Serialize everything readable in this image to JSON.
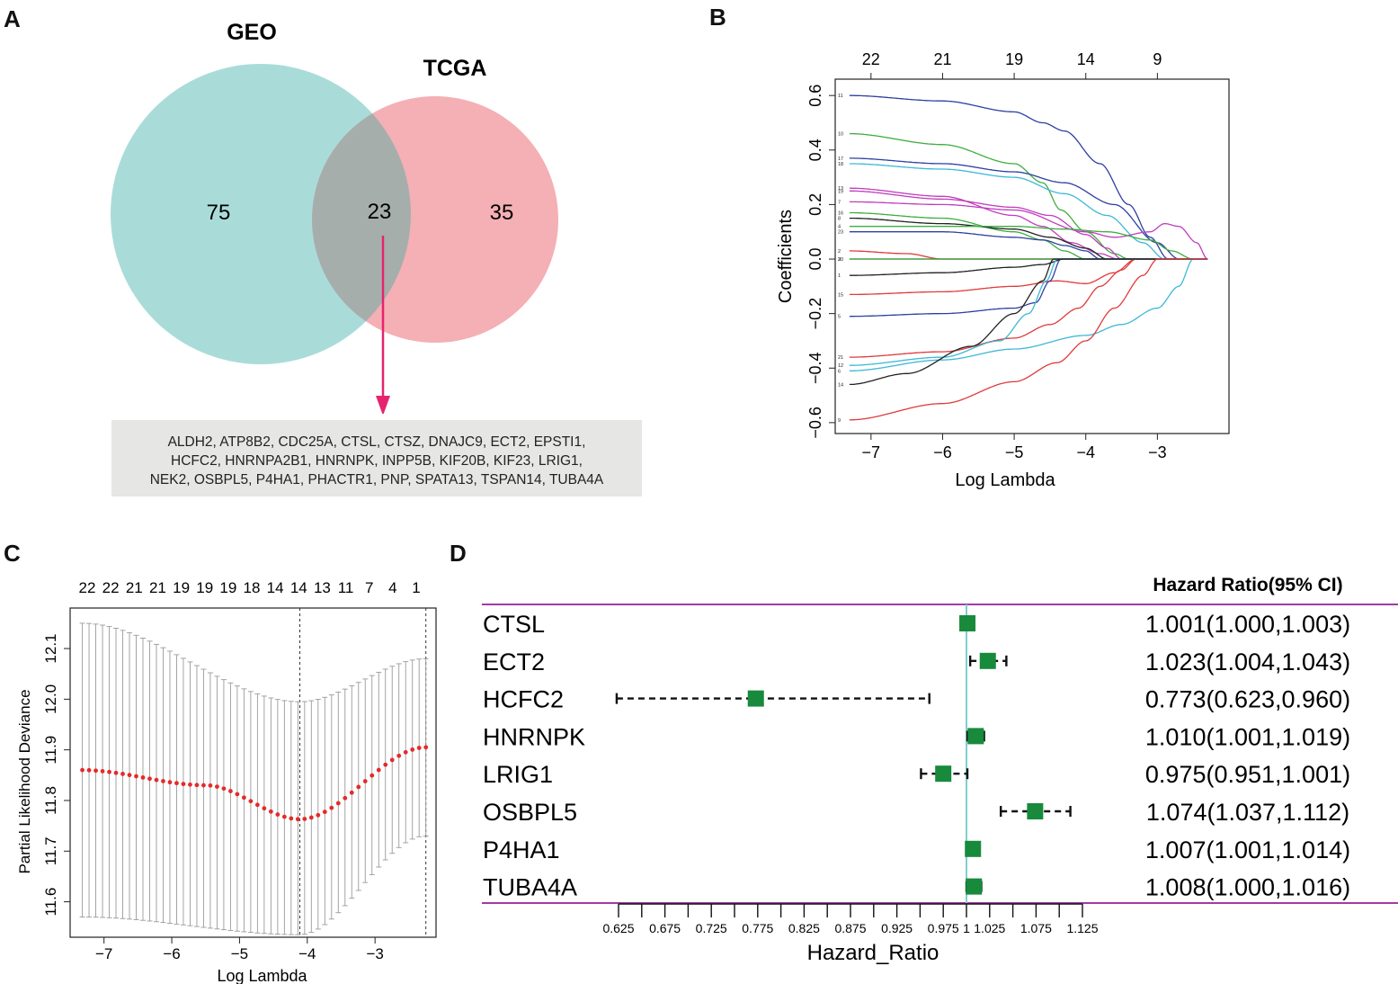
{
  "panels": {
    "a": "A",
    "b": "B",
    "c": "C",
    "d": "D"
  },
  "venn": {
    "left_label": "GEO",
    "right_label": "TCGA",
    "left_only": "75",
    "overlap": "23",
    "right_only": "35",
    "left_color": "#a9dcd9",
    "right_color": "#f4b0b5",
    "overlap_color": "#a6aeac",
    "arrow_color": "#e6246e",
    "gene_lines": [
      "ALDH2, ATP8B2, CDC25A, CTSL, CTSZ, DNAJC9, ECT2, EPSTI1,",
      "HCFC2, HNRNPA2B1, HNRNPK, INPP5B, KIF20B, KIF23, LRIG1,",
      "NEK2, OSBPL5, P4HA1, PHACTR1, PNP, SPATA13, TSPAN14, TUBA4A"
    ]
  },
  "chart_data": [
    {
      "type": "line",
      "panel": "B",
      "title": "",
      "xlabel": "Log Lambda",
      "ylabel": "Coefficients",
      "xlim": [
        -7.5,
        -2.0
      ],
      "ylim": [
        -0.64,
        0.66
      ],
      "x_ticks": [
        -7,
        -6,
        -5,
        -4,
        -3
      ],
      "x_tick_labels": [
        "−7",
        "−6",
        "−5",
        "−4",
        "−3"
      ],
      "y_ticks": [
        -0.6,
        -0.4,
        -0.2,
        0.0,
        0.2,
        0.4,
        0.6
      ],
      "y_tick_labels": [
        "−0.6",
        "−0.4",
        "−0.2",
        "0.0",
        "0.2",
        "0.4",
        "0.6"
      ],
      "top_axis": {
        "positions": [
          -7,
          -6,
          -5,
          -4,
          -3
        ],
        "labels": [
          "22",
          "21",
          "19",
          "14",
          "9"
        ]
      },
      "series": [
        {
          "name": "11",
          "color": "#2e3fa3",
          "points": [
            [
              -7.3,
              0.6
            ],
            [
              -6,
              0.58
            ],
            [
              -5,
              0.54
            ],
            [
              -4.6,
              0.5
            ],
            [
              -4.3,
              0.47
            ],
            [
              -3.8,
              0.35
            ],
            [
              -3.4,
              0.2
            ],
            [
              -3.1,
              0.08
            ],
            [
              -2.85,
              0
            ]
          ]
        },
        {
          "name": "10",
          "color": "#3fad3f",
          "points": [
            [
              -7.3,
              0.46
            ],
            [
              -6,
              0.42
            ],
            [
              -5,
              0.35
            ],
            [
              -4.6,
              0.28
            ],
            [
              -4.35,
              0.18
            ],
            [
              -4,
              0.1
            ],
            [
              -3.6,
              0.02
            ],
            [
              -3.4,
              0
            ]
          ]
        },
        {
          "name": "17",
          "color": "#2e3fa3",
          "points": [
            [
              -7.3,
              0.37
            ],
            [
              -6,
              0.35
            ],
            [
              -5,
              0.32
            ],
            [
              -4.3,
              0.28
            ],
            [
              -3.6,
              0.2
            ],
            [
              -3,
              0.06
            ],
            [
              -2.7,
              0
            ]
          ]
        },
        {
          "name": "18",
          "color": "#3db8d6",
          "points": [
            [
              -7.3,
              0.35
            ],
            [
              -6,
              0.33
            ],
            [
              -5,
              0.3
            ],
            [
              -4.3,
              0.24
            ],
            [
              -3.7,
              0.16
            ],
            [
              -3.2,
              0.06
            ],
            [
              -2.9,
              0
            ]
          ]
        },
        {
          "name": "13",
          "color": "#c03dbe",
          "points": [
            [
              -7.3,
              0.26
            ],
            [
              -6,
              0.23
            ],
            [
              -5,
              0.16
            ],
            [
              -4.6,
              0.12
            ],
            [
              -4.2,
              0.06
            ],
            [
              -3.8,
              0.02
            ],
            [
              -3.55,
              0
            ]
          ]
        },
        {
          "name": "19",
          "color": "#c03dbe",
          "points": [
            [
              -7.3,
              0.25
            ],
            [
              -6,
              0.22
            ],
            [
              -5,
              0.19
            ],
            [
              -4.5,
              0.16
            ],
            [
              -4,
              0.09
            ],
            [
              -3.7,
              0.04
            ],
            [
              -3.5,
              0
            ]
          ]
        },
        {
          "name": "7",
          "color": "#c03dbe",
          "points": [
            [
              -7.3,
              0.21
            ],
            [
              -6,
              0.2
            ],
            [
              -5,
              0.18
            ],
            [
              -4,
              0.1
            ],
            [
              -3.6,
              0.08
            ],
            [
              -3.1,
              0.1
            ],
            [
              -2.9,
              0.13
            ],
            [
              -2.7,
              0.12
            ],
            [
              -2.45,
              0.06
            ],
            [
              -2.3,
              0
            ]
          ]
        },
        {
          "name": "16",
          "color": "#3fad3f",
          "points": [
            [
              -7.3,
              0.17
            ],
            [
              -6,
              0.15
            ],
            [
              -5,
              0.1
            ],
            [
              -4.6,
              0.07
            ],
            [
              -4.3,
              0.03
            ],
            [
              -4,
              0
            ]
          ]
        },
        {
          "name": "8",
          "color": "#222222",
          "points": [
            [
              -7.3,
              0.15
            ],
            [
              -6,
              0.13
            ],
            [
              -5,
              0.11
            ],
            [
              -4.5,
              0.08
            ],
            [
              -4,
              0.04
            ],
            [
              -3.7,
              0
            ]
          ]
        },
        {
          "name": "4",
          "color": "#3fad3f",
          "points": [
            [
              -7.3,
              0.12
            ],
            [
              -6,
              0.12
            ],
            [
              -5,
              0.12
            ],
            [
              -4.3,
              0.11
            ],
            [
              -3.7,
              0.1
            ],
            [
              -3.1,
              0.07
            ],
            [
              -2.8,
              0.03
            ],
            [
              -2.5,
              0
            ]
          ]
        },
        {
          "name": "23",
          "color": "#2e3fa3",
          "points": [
            [
              -7.3,
              0.1
            ],
            [
              -6,
              0.1
            ],
            [
              -5,
              0.08
            ],
            [
              -4.6,
              0.07
            ],
            [
              -4.3,
              0.05
            ],
            [
              -4,
              0.03
            ],
            [
              -3.8,
              0
            ]
          ]
        },
        {
          "name": "2",
          "color": "#e03a3a",
          "points": [
            [
              -7.3,
              0.03
            ],
            [
              -6.5,
              0.02
            ],
            [
              -6,
              0
            ]
          ]
        },
        {
          "name": "20",
          "color": "#222222",
          "points": [
            [
              -7.3,
              0.0
            ],
            [
              -4,
              0.0
            ]
          ]
        },
        {
          "name": "3",
          "color": "#3fad3f",
          "points": [
            [
              -7.3,
              0.0
            ],
            [
              -2.5,
              0.0
            ]
          ]
        },
        {
          "name": "1",
          "color": "#222222",
          "points": [
            [
              -7.3,
              -0.06
            ],
            [
              -6,
              -0.05
            ],
            [
              -5,
              -0.03
            ],
            [
              -4.6,
              -0.02
            ],
            [
              -4.3,
              0
            ]
          ]
        },
        {
          "name": "15",
          "color": "#e03a3a",
          "points": [
            [
              -7.3,
              -0.13
            ],
            [
              -6,
              -0.12
            ],
            [
              -5,
              -0.1
            ],
            [
              -4.4,
              -0.08
            ],
            [
              -4,
              -0.09
            ],
            [
              -3.6,
              -0.05
            ],
            [
              -3.3,
              0
            ]
          ]
        },
        {
          "name": "5",
          "color": "#2e3fa3",
          "points": [
            [
              -7.3,
              -0.21
            ],
            [
              -6,
              -0.2
            ],
            [
              -5,
              -0.18
            ],
            [
              -4.7,
              -0.16
            ],
            [
              -4.5,
              -0.08
            ],
            [
              -4.35,
              0
            ]
          ]
        },
        {
          "name": "21",
          "color": "#e03a3a",
          "points": [
            [
              -7.3,
              -0.36
            ],
            [
              -6,
              -0.34
            ],
            [
              -5,
              -0.29
            ],
            [
              -4.5,
              -0.24
            ],
            [
              -4.1,
              -0.18
            ],
            [
              -3.8,
              -0.1
            ],
            [
              -3.5,
              -0.04
            ],
            [
              -3.3,
              0
            ]
          ]
        },
        {
          "name": "12",
          "color": "#3db8d6",
          "points": [
            [
              -7.3,
              -0.39
            ],
            [
              -6,
              -0.36
            ],
            [
              -5.2,
              -0.3
            ],
            [
              -4.8,
              -0.2
            ],
            [
              -4.55,
              -0.08
            ],
            [
              -4.4,
              0
            ]
          ]
        },
        {
          "name": "6",
          "color": "#3db8d6",
          "points": [
            [
              -7.3,
              -0.41
            ],
            [
              -6,
              -0.37
            ],
            [
              -5,
              -0.33
            ],
            [
              -4,
              -0.28
            ],
            [
              -3.5,
              -0.24
            ],
            [
              -3,
              -0.18
            ],
            [
              -2.7,
              -0.1
            ],
            [
              -2.5,
              0
            ]
          ]
        },
        {
          "name": "14",
          "color": "#222222",
          "points": [
            [
              -7.3,
              -0.46
            ],
            [
              -6.5,
              -0.42
            ],
            [
              -5.6,
              -0.32
            ],
            [
              -5,
              -0.2
            ],
            [
              -4.6,
              -0.08
            ],
            [
              -4.45,
              0
            ]
          ]
        },
        {
          "name": "9",
          "color": "#e03a3a",
          "points": [
            [
              -7.3,
              -0.59
            ],
            [
              -6,
              -0.53
            ],
            [
              -5,
              -0.45
            ],
            [
              -4.4,
              -0.38
            ],
            [
              -4,
              -0.3
            ],
            [
              -3.6,
              -0.18
            ],
            [
              -3.2,
              -0.06
            ],
            [
              -3,
              0
            ]
          ]
        }
      ]
    },
    {
      "type": "scatter",
      "panel": "C",
      "title": "",
      "xlabel": "Log Lambda",
      "ylabel": "Partial Likelihood Deviance",
      "xlim": [
        -7.5,
        -2.1
      ],
      "ylim": [
        11.53,
        12.18
      ],
      "x_ticks": [
        -7,
        -6,
        -5,
        -4,
        -3
      ],
      "x_tick_labels": [
        "−7",
        "−6",
        "−5",
        "−4",
        "−3"
      ],
      "y_ticks": [
        11.6,
        11.7,
        11.8,
        11.9,
        12.0,
        12.1
      ],
      "y_tick_labels": [
        "11.6",
        "11.7",
        "11.8",
        "11.9",
        "12.0",
        "12.1"
      ],
      "top_labels": [
        "22",
        "22",
        "21",
        "21",
        "19",
        "19",
        "19",
        "18",
        "14",
        "14",
        "13",
        "11",
        "7",
        "4",
        "1"
      ],
      "vlines": [
        -4.11,
        -2.25
      ],
      "lambda": {
        "start": -7.32,
        "end": -2.25,
        "count": 52
      },
      "mean": {
        "start": 11.86,
        "min_at": -4.11,
        "min": 11.763,
        "mid_at": -5.5,
        "mid": 11.83,
        "end": 11.905
      },
      "upper": {
        "start": 12.15,
        "min_at": -4.11,
        "min": 11.995,
        "end": 12.08
      },
      "lower": {
        "start": 11.57,
        "min_at": -4.11,
        "min": 11.535,
        "end": 11.73
      },
      "point_color": "#e52a2a",
      "errorbar_color": "#9a9a9a"
    },
    {
      "type": "scatter",
      "panel": "D",
      "title": "",
      "xlabel": "Hazard_Ratio",
      "ylabel": "",
      "header": "Hazard Ratio(95% CI)",
      "xlim": [
        0.625,
        1.125
      ],
      "x_ticks": [
        0.625,
        0.675,
        0.725,
        0.775,
        0.825,
        0.875,
        0.925,
        0.975,
        1.0,
        1.025,
        1.075,
        1.125
      ],
      "x_tick_labels": [
        "0.625",
        "0.675",
        "0.725",
        "0.775",
        "0.825",
        "0.875",
        "0.925",
        "0.975",
        "1",
        "1.025",
        "1.075",
        "1.125"
      ],
      "reference_line": 1.0,
      "marker_color": "#178a3c",
      "ref_color": "#7ecfcf",
      "rule_color": "#a23aa4",
      "rows": [
        {
          "gene": "CTSL",
          "hr": 1.001,
          "lo": 1.0,
          "hi": 1.003,
          "label": "1.001(1.000,1.003)"
        },
        {
          "gene": "ECT2",
          "hr": 1.023,
          "lo": 1.004,
          "hi": 1.043,
          "label": "1.023(1.004,1.043)"
        },
        {
          "gene": "HCFC2",
          "hr": 0.773,
          "lo": 0.623,
          "hi": 0.96,
          "label": "0.773(0.623,0.960)"
        },
        {
          "gene": "HNRNPK",
          "hr": 1.01,
          "lo": 1.001,
          "hi": 1.019,
          "label": "1.010(1.001,1.019)"
        },
        {
          "gene": "LRIG1",
          "hr": 0.975,
          "lo": 0.951,
          "hi": 1.001,
          "label": "0.975(0.951,1.001)"
        },
        {
          "gene": "OSBPL5",
          "hr": 1.074,
          "lo": 1.037,
          "hi": 1.112,
          "label": "1.074(1.037,1.112)"
        },
        {
          "gene": "P4HA1",
          "hr": 1.007,
          "lo": 1.001,
          "hi": 1.014,
          "label": "1.007(1.001,1.014)"
        },
        {
          "gene": "TUBA4A",
          "hr": 1.008,
          "lo": 1.0,
          "hi": 1.016,
          "label": "1.008(1.000,1.016)"
        }
      ]
    }
  ]
}
